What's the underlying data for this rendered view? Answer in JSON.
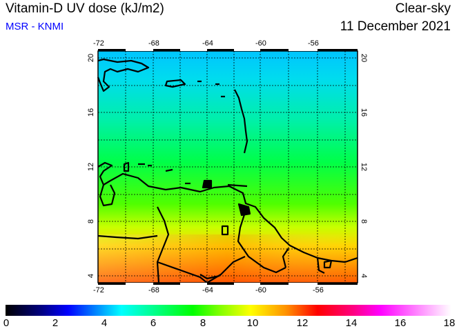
{
  "header": {
    "title": "Vitamin-D UV dose (kJ/m2)",
    "source": "MSR - KNMI",
    "mode": "Clear-sky",
    "date": "11 December 2021"
  },
  "map": {
    "lon_ticks": [
      "-72",
      "-68",
      "-64",
      "-60",
      "-56"
    ],
    "lat_ticks": [
      "20",
      "16",
      "12",
      "8",
      "4"
    ],
    "lon_range": [
      -72,
      -52.9
    ],
    "lat_range": [
      3.5,
      20.5
    ]
  },
  "colorbar": {
    "labels": [
      "0",
      "2",
      "4",
      "6",
      "8",
      "10",
      "12",
      "14",
      "16",
      "18"
    ],
    "min": 0,
    "max": 18
  }
}
